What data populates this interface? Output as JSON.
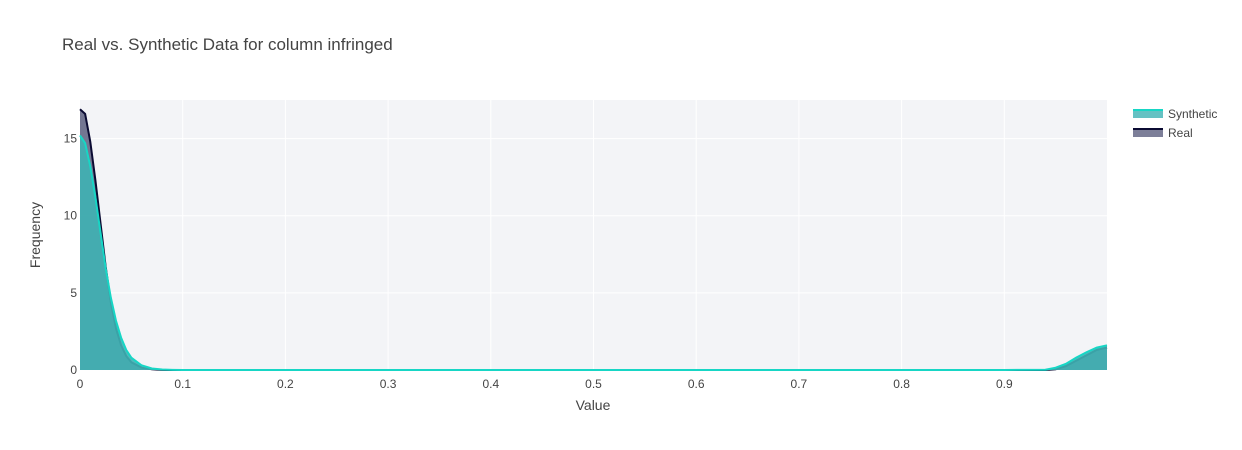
{
  "chart_data": {
    "type": "area",
    "title": "Real vs. Synthetic Data for column infringed",
    "xlabel": "Value",
    "ylabel": "Frequency",
    "xlim": [
      0,
      1
    ],
    "ylim": [
      0,
      17.5
    ],
    "x_ticks": [
      0,
      0.1,
      0.2,
      0.3,
      0.4,
      0.5,
      0.6,
      0.7,
      0.8,
      0.9
    ],
    "x_tick_labels": [
      "0",
      "0.1",
      "0.2",
      "0.3",
      "0.4",
      "0.5",
      "0.6",
      "0.7",
      "0.8",
      "0.9"
    ],
    "y_ticks": [
      0,
      5,
      10,
      15
    ],
    "y_tick_labels": [
      "0",
      "5",
      "10",
      "15"
    ],
    "grid": true,
    "legend_position": "top-right",
    "series": [
      {
        "name": "Real",
        "line_color": "#0b0b33",
        "fill_color": "#5c5f80",
        "x": [
          0,
          0.005,
          0.01,
          0.015,
          0.02,
          0.025,
          0.03,
          0.035,
          0.04,
          0.045,
          0.05,
          0.06,
          0.07,
          0.08,
          0.09,
          0.1,
          0.2,
          0.3,
          0.4,
          0.5,
          0.6,
          0.7,
          0.8,
          0.9,
          0.94,
          0.95,
          0.96,
          0.97,
          0.98,
          0.99,
          1.0
        ],
        "y": [
          16.9,
          16.6,
          14.8,
          12.3,
          9.5,
          6.7,
          4.4,
          2.7,
          1.6,
          0.9,
          0.5,
          0.15,
          0.05,
          0.01,
          0,
          0,
          0,
          0,
          0,
          0,
          0,
          0,
          0,
          0,
          0,
          0.05,
          0.25,
          0.6,
          0.95,
          1.3,
          1.45
        ]
      },
      {
        "name": "Synthetic",
        "line_color": "#17d6c5",
        "fill_color": "#3fb2b4",
        "x": [
          0,
          0.005,
          0.01,
          0.015,
          0.02,
          0.025,
          0.03,
          0.035,
          0.04,
          0.045,
          0.05,
          0.06,
          0.07,
          0.08,
          0.09,
          0.1,
          0.2,
          0.3,
          0.4,
          0.5,
          0.6,
          0.7,
          0.8,
          0.9,
          0.94,
          0.95,
          0.96,
          0.97,
          0.98,
          0.99,
          1.0
        ],
        "y": [
          15.2,
          14.7,
          13.2,
          11.2,
          8.9,
          6.6,
          4.7,
          3.2,
          2.1,
          1.3,
          0.8,
          0.3,
          0.1,
          0.03,
          0.01,
          0,
          0,
          0,
          0,
          0,
          0,
          0,
          0,
          0,
          0.02,
          0.15,
          0.4,
          0.8,
          1.15,
          1.45,
          1.6
        ]
      }
    ]
  }
}
